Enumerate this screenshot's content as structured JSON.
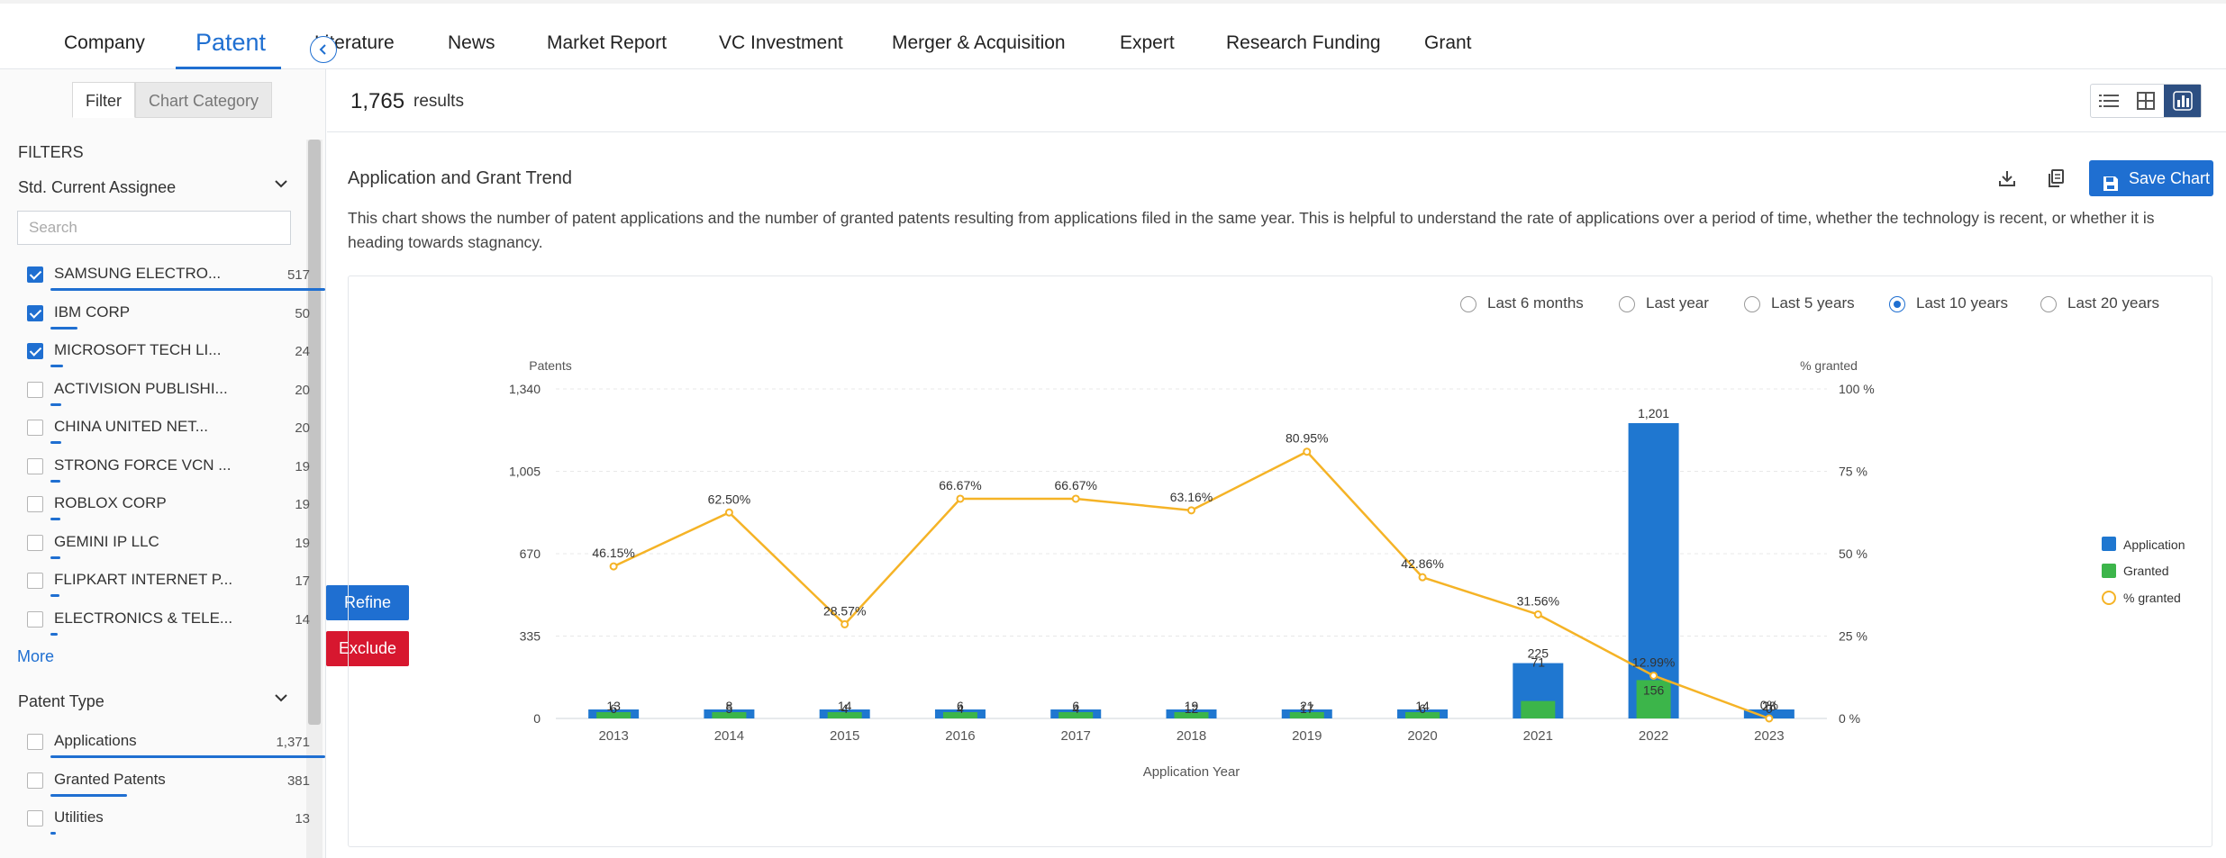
{
  "nav": {
    "tabs": [
      "Company",
      "Patent",
      "Literature",
      "News",
      "Market Report",
      "VC Investment",
      "Merger & Acquisition",
      "Expert",
      "Research Funding",
      "Grant"
    ],
    "active": "Patent"
  },
  "sidebar": {
    "tabs": [
      "Filter",
      "Chart Category"
    ],
    "filters_title": "FILTERS",
    "assignee_group": {
      "title": "Std. Current Assignee",
      "search_placeholder": "Search",
      "items": [
        {
          "label": "SAMSUNG ELECTRO...",
          "count": "517",
          "checked": true,
          "bar_fraction": 1.0
        },
        {
          "label": "IBM CORP",
          "count": "50",
          "checked": true,
          "bar_fraction": 0.097
        },
        {
          "label": "MICROSOFT TECH LI...",
          "count": "24",
          "checked": true,
          "bar_fraction": 0.046
        },
        {
          "label": "ACTIVISION PUBLISHI...",
          "count": "20",
          "checked": false,
          "bar_fraction": 0.039
        },
        {
          "label": "CHINA UNITED NET...",
          "count": "20",
          "checked": false,
          "bar_fraction": 0.039
        },
        {
          "label": "STRONG FORCE VCN ...",
          "count": "19",
          "checked": false,
          "bar_fraction": 0.037
        },
        {
          "label": "ROBLOX CORP",
          "count": "19",
          "checked": false,
          "bar_fraction": 0.037
        },
        {
          "label": "GEMINI IP LLC",
          "count": "19",
          "checked": false,
          "bar_fraction": 0.037
        },
        {
          "label": "FLIPKART INTERNET P...",
          "count": "17",
          "checked": false,
          "bar_fraction": 0.033
        },
        {
          "label": "ELECTRONICS & TELE...",
          "count": "14",
          "checked": false,
          "bar_fraction": 0.027
        }
      ],
      "more_label": "More"
    },
    "patent_type_group": {
      "title": "Patent Type",
      "items": [
        {
          "label": "Applications",
          "count": "1,371",
          "checked": false,
          "bar_fraction": 1.0
        },
        {
          "label": "Granted Patents",
          "count": "381",
          "checked": false,
          "bar_fraction": 0.278
        },
        {
          "label": "Utilities",
          "count": "13",
          "checked": false,
          "bar_fraction": 0.009
        }
      ]
    },
    "refine_label": "Refine",
    "exclude_label": "Exclude"
  },
  "results": {
    "count": "1,765",
    "label": "results"
  },
  "chart_section": {
    "title": "Application and Grant Trend",
    "description": "This chart shows the number of patent applications and the number of granted patents resulting from applications filed in the same year. This is helpful to understand the rate of applications over a period of time, whether the technology is recent, or whether it is heading towards stagnancy.",
    "save_label": "Save Chart",
    "time_options": [
      "Last 6 months",
      "Last year",
      "Last 5 years",
      "Last 10 years",
      "Last 20 years"
    ],
    "selected_option": "Last 10 years"
  },
  "colors": {
    "accent": "#1f6fd1",
    "application": "#1f77d0",
    "granted": "#3cb54a",
    "percent": "#f5b326",
    "exclude": "#d7172f"
  },
  "chart_data": {
    "type": "bar",
    "x": [
      "2013",
      "2014",
      "2015",
      "2016",
      "2017",
      "2018",
      "2019",
      "2020",
      "2021",
      "2022",
      "2023"
    ],
    "series": [
      {
        "name": "Application",
        "values": [
          13,
          8,
          14,
          6,
          6,
          19,
          21,
          14,
          225,
          1201,
          28
        ],
        "labels": [
          "13",
          "8",
          "14",
          "6",
          "6",
          "19",
          "21",
          "14",
          "225",
          "1,201",
          "28"
        ]
      },
      {
        "name": "Granted",
        "values": [
          6,
          5,
          4,
          4,
          4,
          12,
          17,
          6,
          71,
          156,
          0
        ],
        "labels": [
          "6",
          "5",
          "4",
          "4",
          "4",
          "12",
          "17",
          "6",
          "71",
          "156",
          "0"
        ]
      },
      {
        "name": "% granted",
        "type": "line",
        "axis": "right",
        "values": [
          46.15,
          62.5,
          28.57,
          66.67,
          66.67,
          63.16,
          80.95,
          42.86,
          31.56,
          12.99,
          0
        ],
        "labels": [
          "46.15%",
          "62.50%",
          "28.57%",
          "66.67%",
          "66.67%",
          "63.16%",
          "80.95%",
          "42.86%",
          "31.56%",
          "12.99%",
          "0%"
        ]
      }
    ],
    "xlabel": "Application Year",
    "ylabel": "Patents",
    "y2label": "% granted",
    "ylim": [
      0,
      1340
    ],
    "yticks": [
      "0",
      "335",
      "670",
      "1,005",
      "1,340"
    ],
    "y2lim": [
      0,
      100
    ],
    "y2ticks": [
      "0 %",
      "25 %",
      "50 %",
      "75 %",
      "100 %"
    ],
    "legend": "right",
    "grid": true
  }
}
